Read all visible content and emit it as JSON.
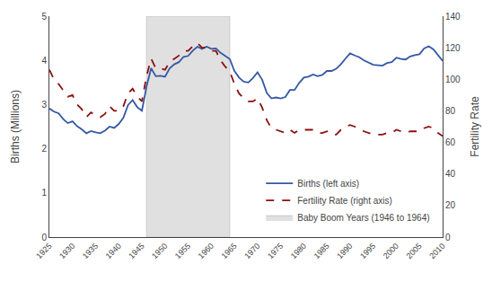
{
  "chart_data": {
    "type": "line",
    "x": [
      1925,
      1926,
      1927,
      1928,
      1929,
      1930,
      1931,
      1932,
      1933,
      1934,
      1935,
      1936,
      1937,
      1938,
      1939,
      1940,
      1941,
      1942,
      1943,
      1944,
      1945,
      1946,
      1947,
      1948,
      1949,
      1950,
      1951,
      1952,
      1953,
      1954,
      1955,
      1956,
      1957,
      1958,
      1959,
      1960,
      1961,
      1962,
      1963,
      1964,
      1965,
      1966,
      1967,
      1968,
      1969,
      1970,
      1971,
      1972,
      1973,
      1974,
      1975,
      1976,
      1977,
      1978,
      1979,
      1980,
      1981,
      1982,
      1983,
      1984,
      1985,
      1986,
      1987,
      1988,
      1989,
      1990,
      1991,
      1992,
      1993,
      1994,
      1995,
      1996,
      1997,
      1998,
      1999,
      2000,
      2001,
      2002,
      2003,
      2004,
      2005,
      2006,
      2007,
      2008,
      2009,
      2010
    ],
    "series": [
      {
        "name": "Births (left axis)",
        "color": "#3458a4",
        "line_style": "solid",
        "values": [
          2.91,
          2.84,
          2.8,
          2.67,
          2.58,
          2.62,
          2.51,
          2.44,
          2.35,
          2.4,
          2.37,
          2.35,
          2.41,
          2.5,
          2.47,
          2.56,
          2.7,
          2.99,
          3.1,
          2.94,
          2.86,
          3.41,
          3.82,
          3.64,
          3.65,
          3.63,
          3.82,
          3.91,
          3.96,
          4.08,
          4.1,
          4.22,
          4.31,
          4.26,
          4.31,
          4.26,
          4.27,
          4.17,
          4.1,
          4.03,
          3.76,
          3.61,
          3.52,
          3.5,
          3.6,
          3.73,
          3.56,
          3.26,
          3.14,
          3.16,
          3.14,
          3.17,
          3.33,
          3.33,
          3.49,
          3.61,
          3.63,
          3.68,
          3.64,
          3.67,
          3.76,
          3.76,
          3.81,
          3.91,
          4.04,
          4.16,
          4.11,
          4.07,
          4.0,
          3.95,
          3.9,
          3.89,
          3.88,
          3.94,
          3.96,
          4.06,
          4.03,
          4.02,
          4.09,
          4.12,
          4.14,
          4.27,
          4.32,
          4.25,
          4.13,
          3.99
        ]
      },
      {
        "name": "Fertility Rate (right axis)",
        "color": "#8b1010",
        "line_style": "dashed",
        "axis": "y2",
        "values": [
          106,
          100,
          97,
          93,
          89,
          90,
          84,
          81,
          76,
          79,
          77,
          76,
          78,
          83,
          80,
          80,
          83,
          91,
          94,
          89,
          86,
          102,
          113,
          107,
          107,
          106,
          111,
          113,
          115,
          118,
          118,
          121,
          123,
          120,
          120,
          118,
          118,
          112,
          108,
          105,
          97,
          91,
          88,
          86,
          86,
          88,
          82,
          74,
          69,
          68,
          67,
          66,
          68,
          66,
          68,
          68,
          68,
          68,
          66,
          66,
          67,
          65,
          65,
          68,
          70,
          71,
          70,
          69,
          67,
          66,
          65,
          65,
          65,
          66,
          66,
          68,
          67,
          66,
          67,
          67,
          67,
          69,
          70,
          69,
          66,
          64
        ]
      },
      {
        "name": "Baby Boom Years (1946 to 1964)",
        "type": "span",
        "color": "#e0e0e0",
        "x": [
          1946,
          1964
        ]
      }
    ],
    "ylabel": "Births (Millions)",
    "y2label": "Fertility Rate",
    "xlim": [
      1925,
      2010
    ],
    "xticks": [
      1925,
      1930,
      1935,
      1940,
      1945,
      1950,
      1955,
      1960,
      1965,
      1970,
      1975,
      1980,
      1985,
      1990,
      1995,
      2000,
      2005,
      2010
    ],
    "ylim": [
      0,
      5
    ],
    "yticks": [
      0,
      1,
      2,
      3,
      4,
      5
    ],
    "y2lim": [
      0,
      140
    ],
    "y2ticks": [
      0,
      20,
      40,
      60,
      80,
      100,
      120,
      140
    ],
    "grid": false,
    "legend": "lower right"
  }
}
